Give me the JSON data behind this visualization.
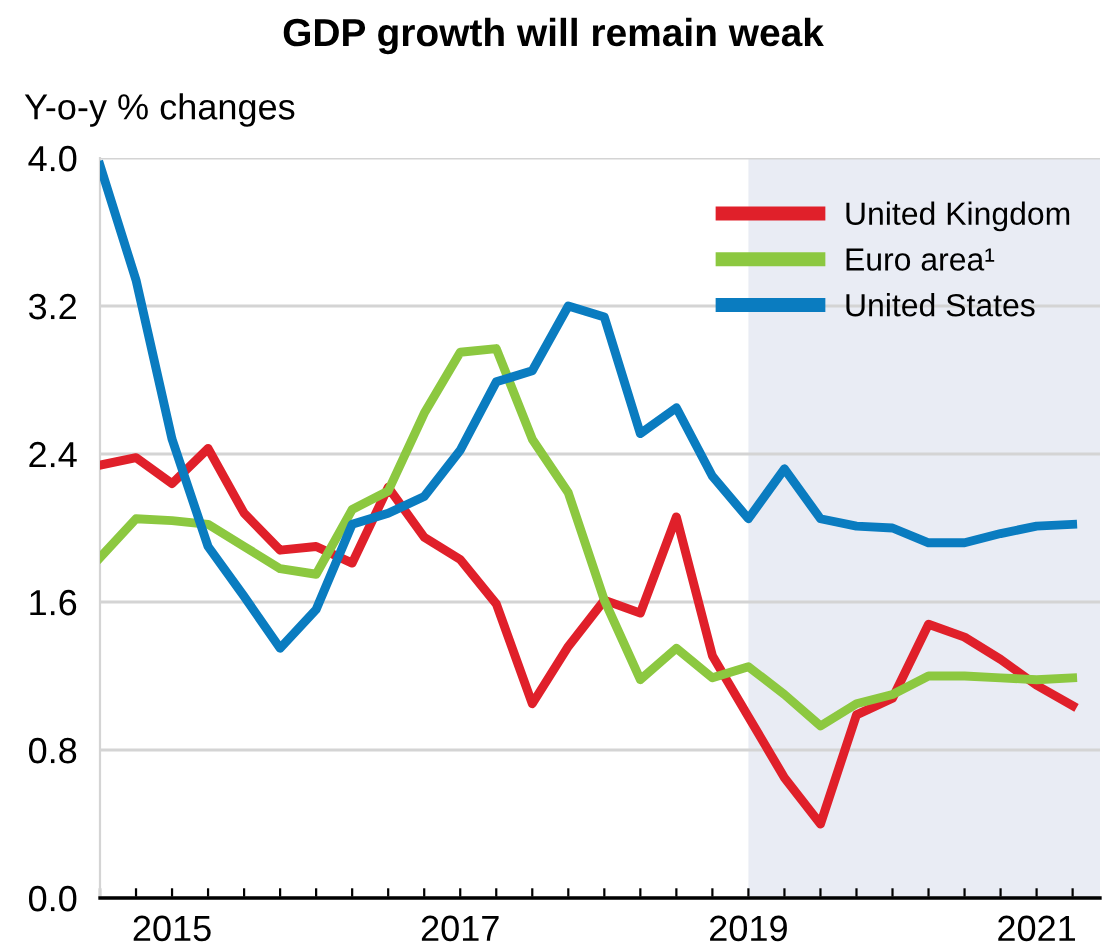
{
  "chart_data": {
    "type": "line",
    "title": "GDP growth will remain weak",
    "ylabel": "Y-o-y % changes",
    "x": [
      2015,
      2015.25,
      2015.5,
      2015.75,
      2016,
      2016.25,
      2016.5,
      2016.75,
      2017,
      2017.25,
      2017.5,
      2017.75,
      2018,
      2018.25,
      2018.5,
      2018.75,
      2019,
      2019.25,
      2019.5,
      2019.75,
      2020,
      2020.25,
      2020.5,
      2020.75,
      2021,
      2021.25,
      2021.5,
      2021.75
    ],
    "series": [
      {
        "name": "United Kingdom",
        "color": "#e0202a",
        "values": [
          2.34,
          2.38,
          2.24,
          2.43,
          2.08,
          1.88,
          1.9,
          1.81,
          2.22,
          1.95,
          1.83,
          1.59,
          1.05,
          1.36,
          1.61,
          1.54,
          2.06,
          1.31,
          0.98,
          0.65,
          0.4,
          0.99,
          1.08,
          1.48,
          1.41,
          1.29,
          1.15,
          1.04
        ]
      },
      {
        "name": "Euro area¹",
        "color": "#8cc840",
        "values": [
          1.84,
          2.05,
          2.04,
          2.02,
          1.9,
          1.78,
          1.75,
          2.1,
          2.2,
          2.62,
          2.95,
          2.97,
          2.48,
          2.19,
          1.61,
          1.18,
          1.35,
          1.19,
          1.25,
          1.1,
          0.93,
          1.05,
          1.1,
          1.2,
          1.2,
          1.19,
          1.18,
          1.19
        ]
      },
      {
        "name": "United States",
        "color": "#0a7cc0",
        "values": [
          3.96,
          3.34,
          2.48,
          1.9,
          1.63,
          1.35,
          1.56,
          2.02,
          2.08,
          2.17,
          2.42,
          2.79,
          2.85,
          3.2,
          3.14,
          2.51,
          2.65,
          2.28,
          2.05,
          2.32,
          2.05,
          2.01,
          2.0,
          1.92,
          1.92,
          1.97,
          2.01,
          2.02
        ]
      }
    ],
    "xlim": [
      2015,
      2021.94
    ],
    "xticks": [
      {
        "value": 2015,
        "label": null
      },
      {
        "value": 2015.25,
        "label": null
      },
      {
        "value": 2015.5,
        "label": "2015"
      },
      {
        "value": 2015.75,
        "label": null
      },
      {
        "value": 2016,
        "label": null
      },
      {
        "value": 2016.25,
        "label": null
      },
      {
        "value": 2016.5,
        "label": null
      },
      {
        "value": 2016.75,
        "label": null
      },
      {
        "value": 2017,
        "label": null
      },
      {
        "value": 2017.25,
        "label": null
      },
      {
        "value": 2017.5,
        "label": "2017"
      },
      {
        "value": 2017.75,
        "label": null
      },
      {
        "value": 2018,
        "label": null
      },
      {
        "value": 2018.25,
        "label": null
      },
      {
        "value": 2018.5,
        "label": null
      },
      {
        "value": 2018.75,
        "label": null
      },
      {
        "value": 2019,
        "label": null
      },
      {
        "value": 2019.25,
        "label": null
      },
      {
        "value": 2019.5,
        "label": "2019"
      },
      {
        "value": 2019.75,
        "label": null
      },
      {
        "value": 2020,
        "label": null
      },
      {
        "value": 2020.25,
        "label": null
      },
      {
        "value": 2020.5,
        "label": null
      },
      {
        "value": 2020.75,
        "label": null
      },
      {
        "value": 2021,
        "label": null
      },
      {
        "value": 2021.25,
        "label": null
      },
      {
        "value": 2021.5,
        "label": "2021"
      },
      {
        "value": 2021.75,
        "label": null
      }
    ],
    "ylim": [
      0,
      4
    ],
    "yticks": [
      {
        "value": 0,
        "label": "0.0"
      },
      {
        "value": 0.8,
        "label": "0.8"
      },
      {
        "value": 1.6,
        "label": "1.6"
      },
      {
        "value": 2.4,
        "label": "2.4"
      },
      {
        "value": 3.2,
        "label": "3.2"
      },
      {
        "value": 4,
        "label": "4.0"
      }
    ],
    "bands": [
      {
        "axis": "x",
        "from": 2019.5,
        "to": 2021.94,
        "color": "#e9ecf4"
      }
    ],
    "grid": "y",
    "legend": "top right",
    "line_style": "solid",
    "marker": "none"
  }
}
